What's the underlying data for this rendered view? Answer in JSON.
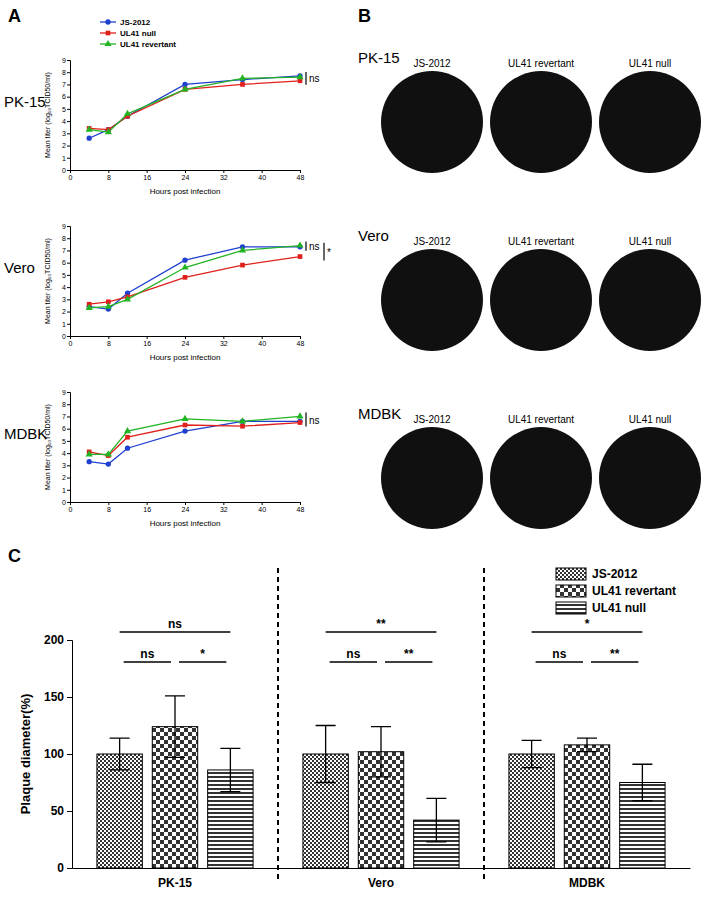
{
  "figure": {
    "panel_labels": [
      "A",
      "B",
      "C"
    ]
  },
  "plaque_images": [
    {
      "cell_line": "PK-15",
      "labels": [
        "JS-2012",
        "UL41 revertant",
        "UL41 null"
      ]
    },
    {
      "cell_line": "Vero",
      "labels": [
        "JS-2012",
        "UL41 revertant",
        "UL41 null"
      ]
    },
    {
      "cell_line": "MDBK",
      "labels": [
        "JS-2012",
        "UL41 revertant",
        "UL41 null"
      ]
    }
  ],
  "chart_data": [
    {
      "type": "line",
      "title": "PK-15",
      "x_label": "Hours post infection",
      "y_label": "Mean titer (log₁₀TCID50/ml)",
      "x": [
        4,
        8,
        12,
        24,
        36,
        48
      ],
      "xlim": [
        0,
        48
      ],
      "xticks": [
        0,
        8,
        16,
        24,
        32,
        40,
        48
      ],
      "ylim": [
        0,
        9
      ],
      "yticks": [
        0,
        1,
        2,
        3,
        4,
        5,
        6,
        7,
        8,
        9
      ],
      "legend": "top",
      "series": [
        {
          "name": "JS-2012",
          "color": "#1f3fcf",
          "marker": "circle",
          "values": [
            2.6,
            3.3,
            4.4,
            7.0,
            7.4,
            7.7
          ]
        },
        {
          "name": "UL41 null",
          "color": "#e0201b",
          "marker": "square",
          "values": [
            3.4,
            3.3,
            4.4,
            6.6,
            7.0,
            7.3
          ]
        },
        {
          "name": "UL41 revertant",
          "color": "#22b322",
          "marker": "triangle",
          "values": [
            3.3,
            3.1,
            4.6,
            6.6,
            7.5,
            7.6
          ]
        }
      ],
      "annotations": [
        {
          "text": "ns",
          "between": [
            "JS-2012",
            "UL41 null"
          ]
        }
      ]
    },
    {
      "type": "line",
      "title": "Vero",
      "x_label": "Hours post infection",
      "y_label": "Mean titer (log₁₀TCID50/ml)",
      "x": [
        4,
        8,
        12,
        24,
        36,
        48
      ],
      "xlim": [
        0,
        48
      ],
      "xticks": [
        0,
        8,
        16,
        24,
        32,
        40,
        48
      ],
      "ylim": [
        0,
        9
      ],
      "yticks": [
        0,
        1,
        2,
        3,
        4,
        5,
        6,
        7,
        8,
        9
      ],
      "series": [
        {
          "name": "JS-2012",
          "color": "#1f3fcf",
          "marker": "circle",
          "values": [
            2.4,
            2.2,
            3.5,
            6.2,
            7.3,
            7.3
          ]
        },
        {
          "name": "UL41 null",
          "color": "#e0201b",
          "marker": "square",
          "values": [
            2.6,
            2.8,
            3.2,
            4.8,
            5.8,
            6.5
          ]
        },
        {
          "name": "UL41 revertant",
          "color": "#22b322",
          "marker": "triangle",
          "values": [
            2.3,
            2.4,
            3.0,
            5.6,
            7.0,
            7.4
          ]
        }
      ],
      "annotations": [
        {
          "text": "ns",
          "between": [
            "JS-2012",
            "UL41 revertant"
          ]
        },
        {
          "text": "*",
          "between": [
            "JS-2012",
            "UL41 null"
          ]
        }
      ]
    },
    {
      "type": "line",
      "title": "MDBK",
      "x_label": "Hours post infection",
      "y_label": "Mean titer (log₁₀TCID50/ml)",
      "x": [
        4,
        8,
        12,
        24,
        36,
        48
      ],
      "xlim": [
        0,
        48
      ],
      "xticks": [
        0,
        8,
        16,
        24,
        32,
        40,
        48
      ],
      "ylim": [
        0,
        9
      ],
      "yticks": [
        0,
        1,
        2,
        3,
        4,
        5,
        6,
        7,
        8,
        9
      ],
      "series": [
        {
          "name": "JS-2012",
          "color": "#1f3fcf",
          "marker": "circle",
          "values": [
            3.3,
            3.1,
            4.4,
            5.8,
            6.6,
            6.6
          ]
        },
        {
          "name": "UL41 null",
          "color": "#e0201b",
          "marker": "square",
          "values": [
            4.1,
            3.8,
            5.3,
            6.3,
            6.2,
            6.5
          ]
        },
        {
          "name": "UL41 revertant",
          "color": "#22b322",
          "marker": "triangle",
          "values": [
            3.9,
            3.9,
            5.8,
            6.8,
            6.6,
            7.0
          ]
        }
      ],
      "annotations": [
        {
          "text": "ns",
          "between": [
            "UL41 revertant",
            "UL41 null"
          ]
        }
      ]
    },
    {
      "type": "bar",
      "y_label": "Plaque diameter(%)",
      "categories": [
        "PK-15",
        "Vero",
        "MDBK"
      ],
      "ylim": [
        0,
        200
      ],
      "yticks": [
        0,
        50,
        100,
        150,
        200
      ],
      "legend": "top-right",
      "series": [
        {
          "name": "JS-2012",
          "color": "#333333",
          "values": [
            100,
            100,
            100
          ],
          "errors": [
            14,
            25,
            12
          ]
        },
        {
          "name": "UL41 revertant",
          "color": "#333333",
          "values": [
            124,
            102,
            108
          ],
          "errors": [
            27,
            22,
            6
          ]
        },
        {
          "name": "UL41 null",
          "color": "#333333",
          "values": [
            86,
            42,
            75
          ],
          "errors": [
            19,
            19,
            16
          ]
        }
      ],
      "annotations": [
        {
          "category": "PK-15",
          "between": [
            "JS-2012",
            "UL41 revertant"
          ],
          "text": "ns"
        },
        {
          "category": "PK-15",
          "between": [
            "UL41 revertant",
            "UL41 null"
          ],
          "text": "*"
        },
        {
          "category": "PK-15",
          "between": [
            "JS-2012",
            "UL41 null"
          ],
          "text": "ns"
        },
        {
          "category": "Vero",
          "between": [
            "JS-2012",
            "UL41 revertant"
          ],
          "text": "ns"
        },
        {
          "category": "Vero",
          "between": [
            "UL41 revertant",
            "UL41 null"
          ],
          "text": "**"
        },
        {
          "category": "Vero",
          "between": [
            "JS-2012",
            "UL41 null"
          ],
          "text": "**"
        },
        {
          "category": "MDBK",
          "between": [
            "JS-2012",
            "UL41 revertant"
          ],
          "text": "ns"
        },
        {
          "category": "MDBK",
          "between": [
            "UL41 revertant",
            "UL41 null"
          ],
          "text": "**"
        },
        {
          "category": "MDBK",
          "between": [
            "JS-2012",
            "UL41 null"
          ],
          "text": "*"
        }
      ]
    }
  ]
}
